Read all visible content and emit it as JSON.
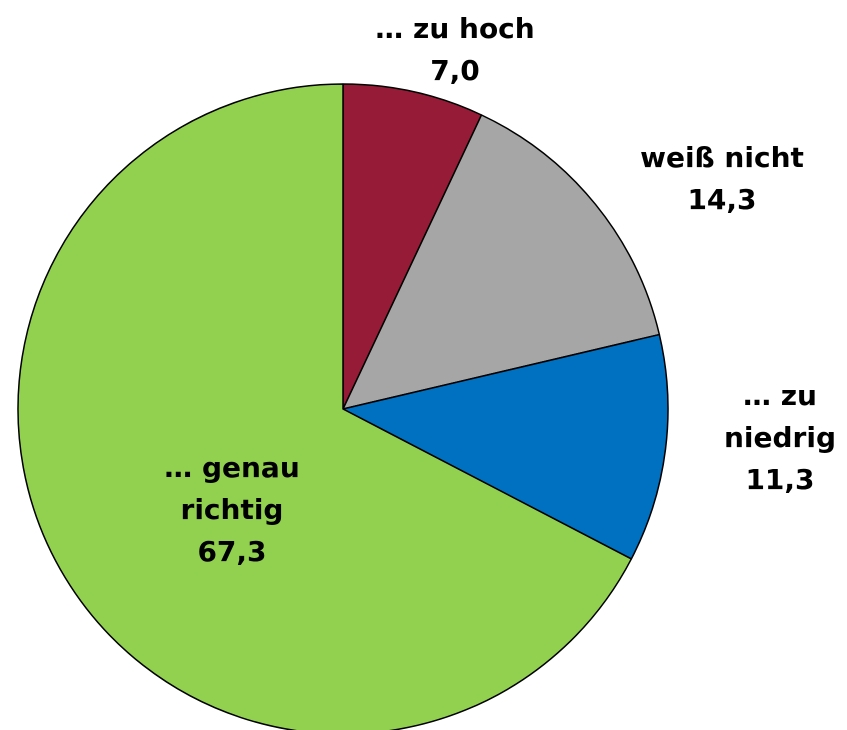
{
  "chart_data": {
    "type": "pie",
    "categories": [
      "… zu hoch",
      "weiß nicht",
      "… zu niedrig",
      "… genau richtig"
    ],
    "values": [
      7.0,
      14.3,
      11.3,
      67.3
    ],
    "value_labels": [
      "7,0",
      "14,3",
      "11,3",
      "67,3"
    ],
    "colors": [
      "#951b36",
      "#a6a6a6",
      "#0070c0",
      "#92d050"
    ]
  }
}
